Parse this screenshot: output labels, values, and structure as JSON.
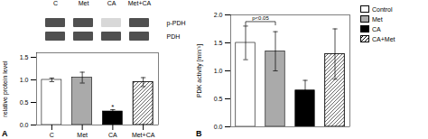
{
  "chart_data": [
    {
      "type": "bar",
      "panel_label": "A",
      "categories": [
        "C",
        "Met",
        "CA",
        "Met+CA"
      ],
      "values": [
        1.0,
        1.05,
        0.3,
        0.95
      ],
      "errors": [
        0.04,
        0.12,
        0.04,
        0.1
      ],
      "ylabel": "relative protein level",
      "ylim": [
        0,
        1.6
      ],
      "yticks": [
        {
          "value": 0,
          "label": "0.0"
        },
        0.5,
        {
          "value": 1,
          "label": "1.0"
        },
        1.5
      ],
      "colors": [
        "white",
        "#aaaaaa",
        "black",
        "white"
      ],
      "hatch": [
        false,
        false,
        false,
        true
      ],
      "annotations": [
        {
          "text": "*",
          "category": "CA"
        }
      ],
      "blot": {
        "columns": [
          "C",
          "Met",
          "CA",
          "Met+CA"
        ],
        "rows": [
          "p-PDH",
          "PDH"
        ],
        "intensities": [
          [
            0.75,
            0.75,
            0.25,
            0.75
          ],
          [
            0.75,
            0.75,
            0.75,
            0.75
          ]
        ]
      }
    },
    {
      "type": "bar",
      "panel_label": "B",
      "categories": [
        "Control",
        "Met",
        "CA",
        "CA+Met"
      ],
      "values": [
        1.5,
        1.35,
        0.65,
        1.3
      ],
      "errors": [
        0.3,
        0.35,
        0.18,
        0.45
      ],
      "ylabel": "PDK activity [min⁻¹]",
      "ylim": [
        0,
        2.0
      ],
      "yticks": [
        {
          "value": 0,
          "label": "0.0"
        },
        0.5,
        {
          "value": 1,
          "label": "1.0"
        },
        1.5,
        {
          "value": 2,
          "label": "2.0"
        }
      ],
      "colors": [
        "white",
        "#aaaaaa",
        "black",
        "white"
      ],
      "hatch": [
        false,
        false,
        false,
        true
      ],
      "tick_labels": "y",
      "legend": "upper right",
      "annotations": [
        {
          "text": "p<0.05",
          "x1": "Control",
          "x2": "Met",
          "y": 1.88
        }
      ]
    }
  ]
}
